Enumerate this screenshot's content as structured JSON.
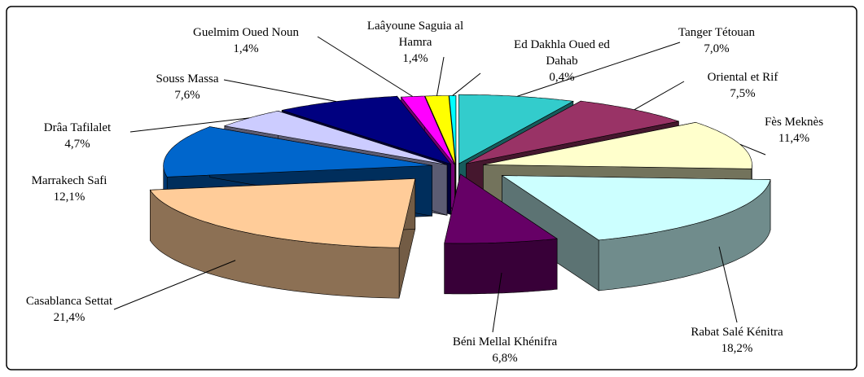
{
  "chart_data": {
    "type": "pie3d",
    "categories": [
      "Tanger Tétouan",
      "Oriental et Rif",
      "Fès Meknès",
      "Rabat Salé Kénitra",
      "Béni Mellal Khénifra",
      "Casablanca Settat",
      "Marrakech Safi",
      "Drâa Tafilalet",
      "Souss Massa",
      "Guelmim Oued Noun",
      "Laâyoune Saguia al Hamra",
      "Ed Dakhla Oued ed Dahab"
    ],
    "values": [
      7.0,
      7.5,
      11.4,
      18.2,
      6.8,
      21.4,
      12.1,
      4.7,
      7.6,
      1.4,
      1.4,
      0.4
    ],
    "value_labels": [
      "7,0%",
      "7,5%",
      "11,4%",
      "18,2%",
      "6,8%",
      "21,4%",
      "12,1%",
      "4,7%",
      "7,6%",
      "1,4%",
      "1,4%",
      "0,4%"
    ],
    "colors": [
      "#33cccc",
      "#993366",
      "#ffffcc",
      "#ccffff",
      "#660066",
      "#ffcc99",
      "#0066cc",
      "#ccccff",
      "#000080",
      "#ff00ff",
      "#ffff00",
      "#00ffff"
    ]
  }
}
